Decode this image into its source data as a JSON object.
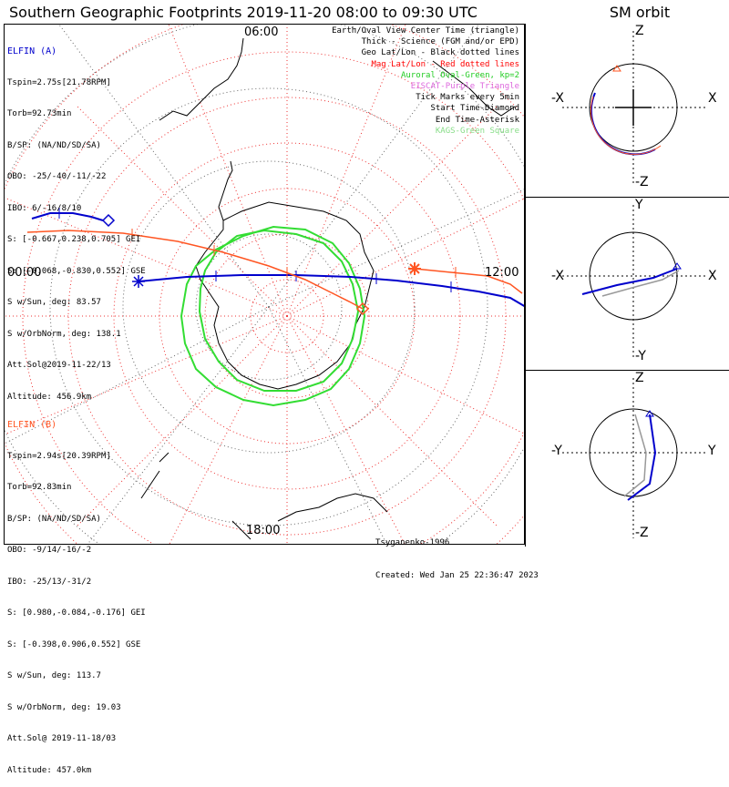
{
  "title": "Southern Geographic Footprints 2019-11-20 08:00 to 09:30 UTC",
  "sm_orbit_title": "SM orbit",
  "clock_labels": {
    "top": "06:00",
    "left": "00:00",
    "right": "12:00",
    "bottom": "18:00"
  },
  "elfin_a": {
    "name": "ELFIN (A)",
    "lines": [
      "Tspin=2.75s[21.78RPM]",
      "Torb=92.73min",
      "B/SP: (NA/ND/SD/SA)",
      "OBO: -25/-40/-11/-22",
      "IBO: 6/-16/8/10",
      "S: [-0.667,0.238,0.705] GEI",
      "S: [-0.068,-0.830,0.552] GSE",
      "S w/Sun, deg: 83.57",
      "S w/OrbNorm, deg: 138.1",
      "Att.Sol@2019-11-22/13",
      "Altitude: 456.9km"
    ],
    "color": "#0000cc"
  },
  "elfin_b": {
    "name": "ELFIN (B)",
    "lines": [
      "Tspin=2.94s[20.39RPM]",
      "Torb=92.83min",
      "B/SP: (NA/ND/SD/SA)",
      "OBO: -9/14/-16/-2",
      "IBO: -25/13/-31/2",
      "S: [0.980,-0.084,-0.176] GEI",
      "S: [-0.398,0.906,0.552] GSE",
      "S w/Sun, deg: 113.7",
      "S w/OrbNorm, deg: 19.03",
      "Att.Sol@ 2019-11-18/03",
      "Altitude: 457.0km"
    ],
    "color": "#ff5522"
  },
  "legend": [
    {
      "text": "Earth/Oval View Center Time (triangle)",
      "color": "#000000"
    },
    {
      "text": "Thick - Science (FGM and/or EPD)",
      "color": "#000000"
    },
    {
      "text": "Geo Lat/Lon - Black dotted lines",
      "color": "#000000"
    },
    {
      "text": "Mag Lat/Lon - Red dotted lines",
      "color": "#ff0000"
    },
    {
      "text": "Auroral Oval-Green, kp=2",
      "color": "#22cc22"
    },
    {
      "text": "EISCAT-Purple Triangle",
      "color": "#dd66dd"
    },
    {
      "text": "Tick Marks every 5min",
      "color": "#000000"
    },
    {
      "text": "Start Time-Diamond",
      "color": "#000000"
    },
    {
      "text": "End Time-Asterisk",
      "color": "#000000"
    },
    {
      "text": "KAGS-Green Square",
      "color": "#88dd88"
    }
  ],
  "credit": {
    "author": "Tsyganenko-1996",
    "created": "Created: Wed Jan 25 22:36:47 2023"
  },
  "panels": [
    {
      "top": "Z",
      "bottom": "-Z",
      "left": "-X",
      "right": "X"
    },
    {
      "top": "Y",
      "bottom": "-Y",
      "left": "-X",
      "right": "X"
    },
    {
      "top": "Z",
      "bottom": "-Z",
      "left": "-Y",
      "right": "Y"
    }
  ]
}
